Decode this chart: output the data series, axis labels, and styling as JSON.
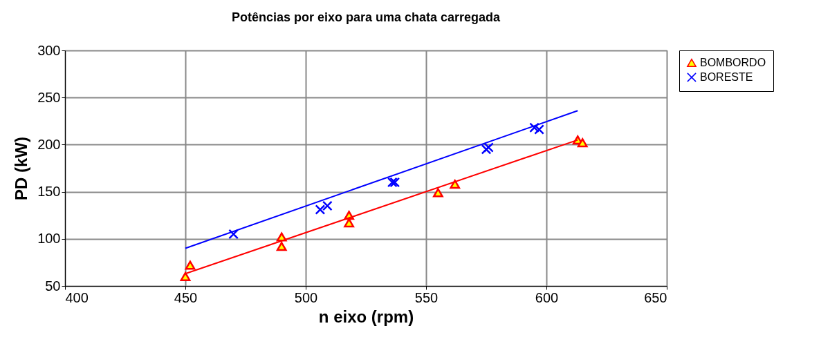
{
  "chart_data": {
    "type": "scatter",
    "title": "Potências por eixo para uma chata carregada",
    "xlabel": "n eixo (rpm)",
    "ylabel": "PD (kW)",
    "xlim": [
      400,
      650
    ],
    "xticks": [
      400,
      450,
      500,
      550,
      600,
      650
    ],
    "ylim": [
      50,
      300
    ],
    "yticks": [
      50,
      100,
      150,
      200,
      250,
      300
    ],
    "grid": true,
    "legend": "right",
    "series": [
      {
        "name": "BOMBORDO",
        "color": "#ff0000",
        "marker": "triangle",
        "x": [
          450,
          452,
          490,
          490,
          518,
          518,
          555,
          562,
          613,
          615
        ],
        "values": [
          60,
          72,
          102,
          92,
          125,
          117,
          149,
          158,
          205,
          202
        ]
      },
      {
        "name": "BORESTE",
        "color": "#0000ff",
        "marker": "cross",
        "x": [
          470,
          506,
          509,
          536,
          537,
          575,
          576,
          595,
          597
        ],
        "values": [
          105,
          131,
          135,
          160,
          160,
          195,
          197,
          218,
          216
        ]
      },
      {
        "type": "line",
        "color": "#ff0000",
        "x": [
          450,
          613
        ],
        "values": [
          63,
          205
        ]
      },
      {
        "type": "line",
        "color": "#0000ff",
        "x": [
          450,
          613
        ],
        "values": [
          90,
          236
        ]
      }
    ]
  }
}
